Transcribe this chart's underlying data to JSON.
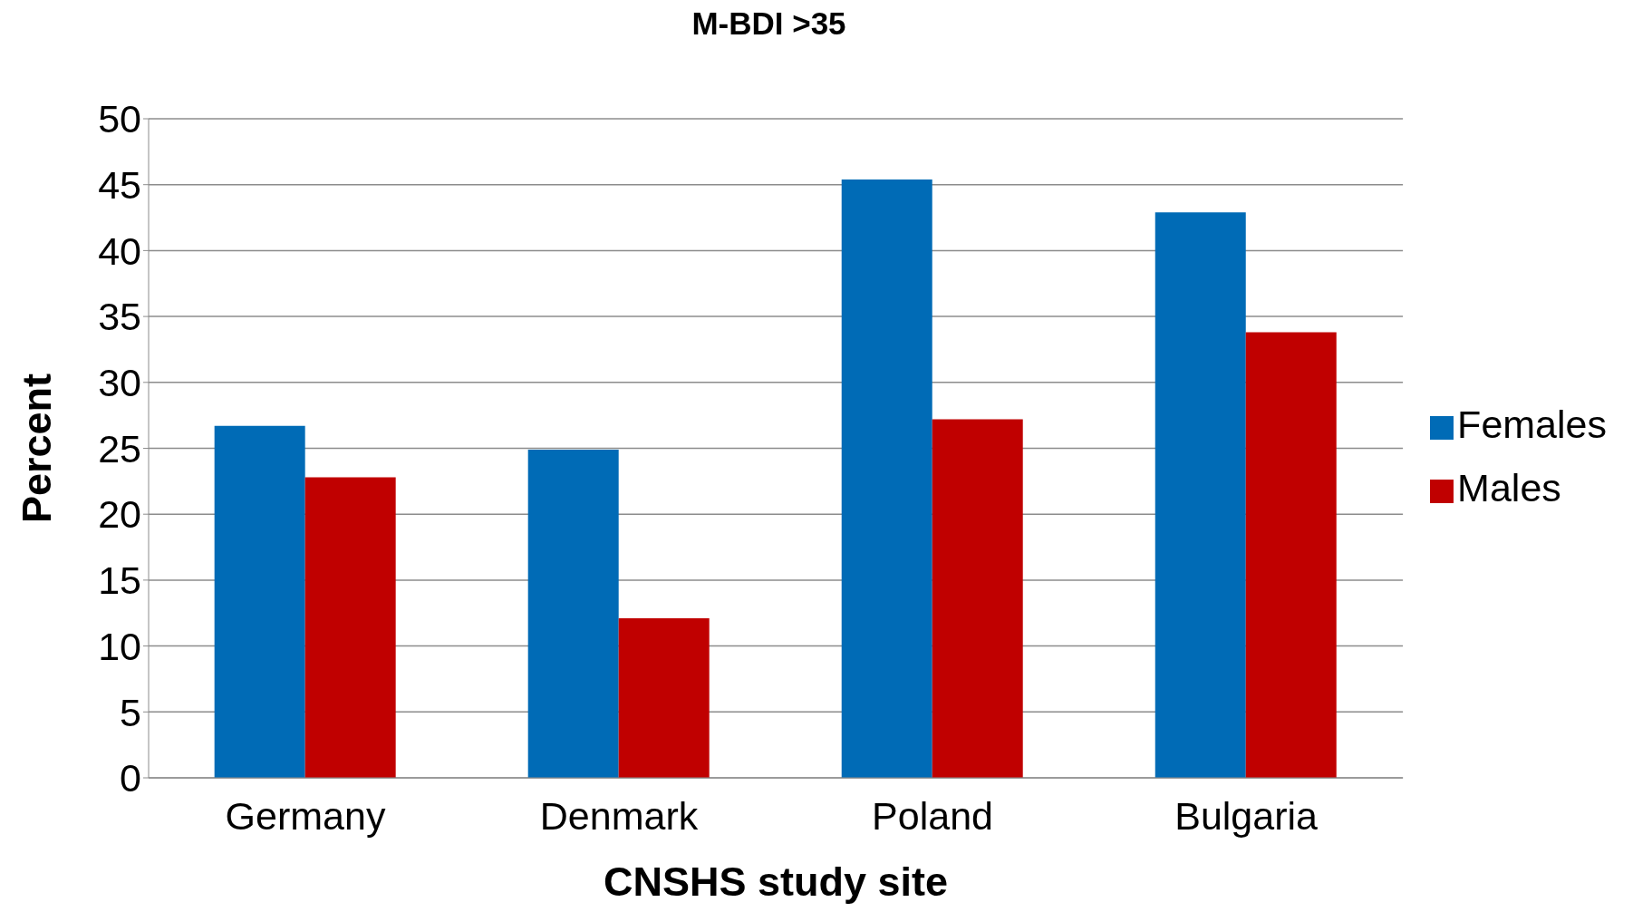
{
  "chart_data": {
    "type": "bar",
    "title": "M-BDI >35",
    "xlabel": "CNSHS study site",
    "ylabel": "Percent",
    "categories": [
      "Germany",
      "Denmark",
      "Poland",
      "Bulgaria"
    ],
    "series": [
      {
        "name": "Females",
        "color": "#006bb6",
        "values": [
          26.7,
          24.9,
          45.4,
          42.9
        ]
      },
      {
        "name": "Males",
        "color": "#c00000",
        "values": [
          22.8,
          12.1,
          27.2,
          33.8
        ]
      }
    ],
    "ylim": [
      0,
      50
    ],
    "yticks": [
      0,
      5,
      10,
      15,
      20,
      25,
      30,
      35,
      40,
      45,
      50
    ],
    "grid": "y",
    "legend": "right"
  }
}
